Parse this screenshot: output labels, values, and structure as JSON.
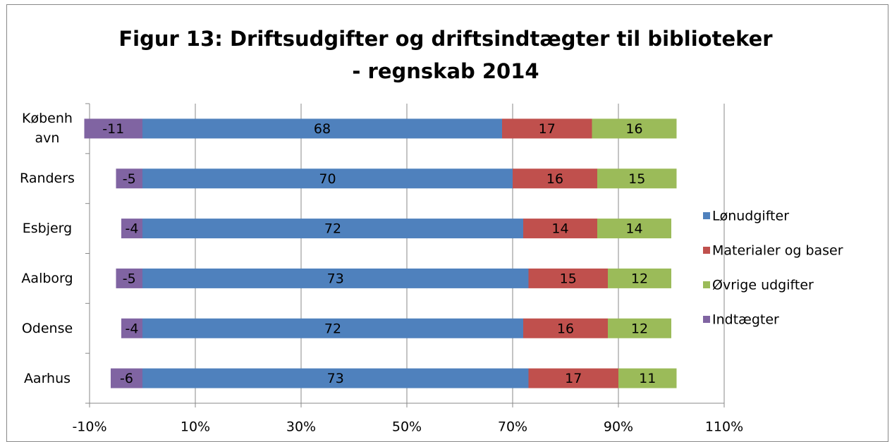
{
  "chart_data": {
    "type": "stacked-bar-horizontal",
    "title": [
      "Figur 13: Driftsudgifter og driftsindtægter til biblioteker",
      "- regnskab 2014"
    ],
    "categories": [
      "København",
      "Randers",
      "Esbjerg",
      "Aalborg",
      "Odense",
      "Aarhus"
    ],
    "series": [
      {
        "name": "Lønudgifter",
        "color": "#4f81bd",
        "values": [
          68,
          70,
          72,
          73,
          72,
          73
        ]
      },
      {
        "name": "Materialer og baser",
        "color": "#c0504d",
        "values": [
          17,
          16,
          14,
          15,
          16,
          17
        ]
      },
      {
        "name": "Øvrige udgifter",
        "color": "#9bbb59",
        "values": [
          16,
          15,
          14,
          12,
          12,
          11
        ]
      },
      {
        "name": "Indtægter",
        "color": "#8064a2",
        "values": [
          -11,
          -5,
          -4,
          -5,
          -4,
          -6
        ]
      }
    ],
    "xlim": [
      -10,
      110
    ],
    "xticks": [
      {
        "value": -10,
        "label": "-10%"
      },
      {
        "value": 10,
        "label": "10%"
      },
      {
        "value": 30,
        "label": "30%"
      },
      {
        "value": 50,
        "label": "50%"
      },
      {
        "value": 70,
        "label": "70%"
      },
      {
        "value": 90,
        "label": "90%"
      },
      {
        "value": 110,
        "label": "110%"
      }
    ],
    "grid": true,
    "legend": "right"
  }
}
